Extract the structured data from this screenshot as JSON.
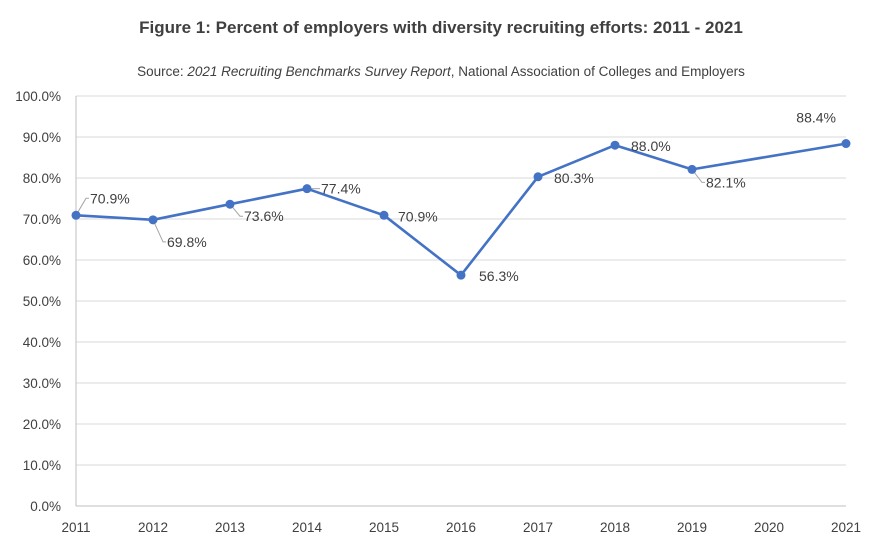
{
  "chart_data": {
    "type": "line",
    "title": "Figure 1: Percent of employers with diversity recruiting efforts: 2011 - 2021",
    "subtitle": {
      "prefix": "Source: ",
      "report": "2021 Recruiting Benchmarks Survey Report",
      "suffix": ", National Association of Colleges and Employers"
    },
    "xlabel": "",
    "ylabel": "",
    "x": [
      2011,
      2012,
      2013,
      2014,
      2015,
      2016,
      2017,
      2018,
      2019,
      2020,
      2021
    ],
    "x_tick_labels": [
      "2011",
      "2012",
      "2013",
      "2014",
      "2015",
      "2016",
      "2017",
      "2018",
      "2019",
      "2020",
      "2021"
    ],
    "series": [
      {
        "name": "Percent of employers",
        "color": "#4472C4",
        "points": [
          {
            "x": 2011,
            "y": 70.9,
            "label": "70.9%"
          },
          {
            "x": 2012,
            "y": 69.8,
            "label": "69.8%"
          },
          {
            "x": 2013,
            "y": 73.6,
            "label": "73.6%"
          },
          {
            "x": 2014,
            "y": 77.4,
            "label": "77.4%"
          },
          {
            "x": 2015,
            "y": 70.9,
            "label": "70.9%"
          },
          {
            "x": 2016,
            "y": 56.3,
            "label": "56.3%"
          },
          {
            "x": 2017,
            "y": 80.3,
            "label": "80.3%"
          },
          {
            "x": 2018,
            "y": 88.0,
            "label": "88.0%"
          },
          {
            "x": 2019,
            "y": 82.1,
            "label": "82.1%"
          },
          {
            "x": 2021,
            "y": 88.4,
            "label": "88.4%"
          }
        ]
      }
    ],
    "ylim": [
      0,
      100
    ],
    "y_ticks": [
      0,
      10,
      20,
      30,
      40,
      50,
      60,
      70,
      80,
      90,
      100
    ],
    "y_tick_labels": [
      "0.0%",
      "10.0%",
      "20.0%",
      "30.0%",
      "40.0%",
      "50.0%",
      "60.0%",
      "70.0%",
      "80.0%",
      "90.0%",
      "100.0%"
    ],
    "grid": true,
    "legend": "none",
    "colors": {
      "line": "#4472C4",
      "grid": "#d9d9d9",
      "axis": "#bfbfbf",
      "text": "#404040",
      "leader": "#a6a6a6"
    }
  }
}
